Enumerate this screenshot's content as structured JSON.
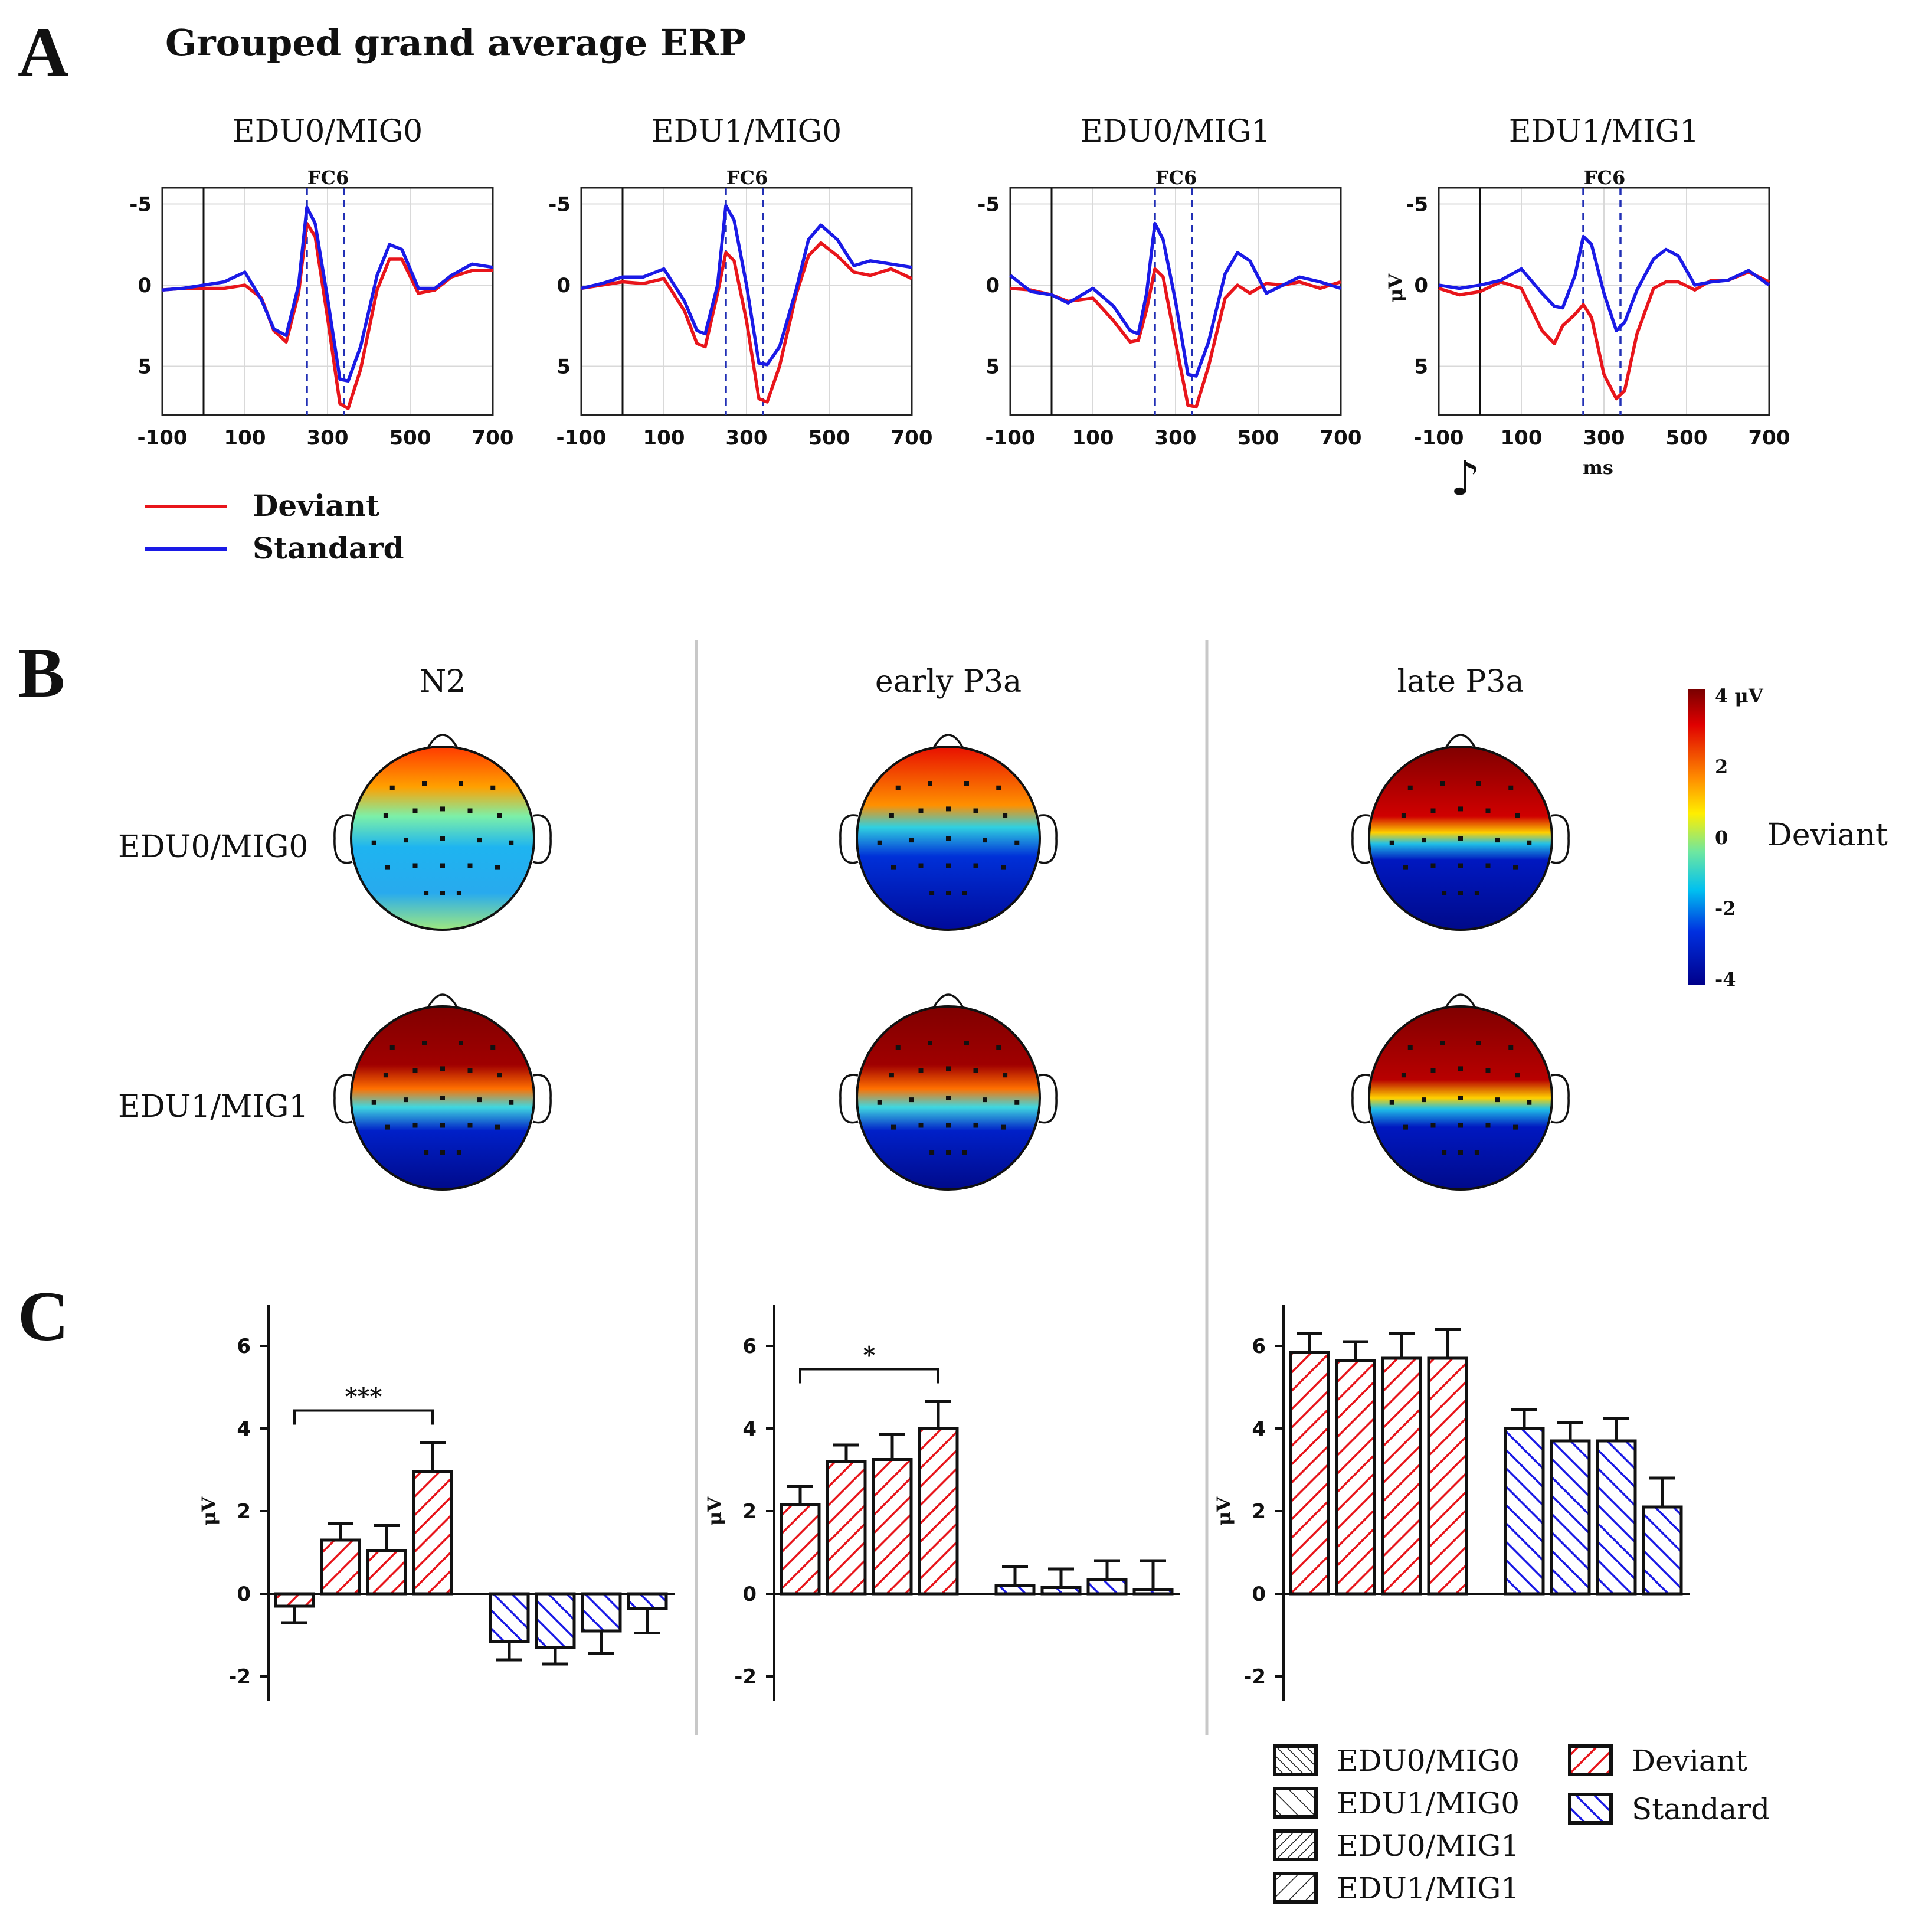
{
  "title": "Grouped grand average ERP",
  "panels": {
    "a": "A",
    "b": "B",
    "c": "C"
  },
  "erp": {
    "electrode": "FC6",
    "x_ticks": [
      "-100",
      "100",
      "300",
      "500",
      "700"
    ],
    "y_ticks": [
      "-5",
      "0",
      "5"
    ],
    "x_unit": "ms",
    "y_unit": "μV",
    "stimulus_glyph": "♪",
    "legend": {
      "deviant": "Deviant",
      "standard": "Standard"
    },
    "colors": {
      "deviant": "#e8151b",
      "standard": "#1a1ae6",
      "marker": "#2230b5"
    }
  },
  "topo": {
    "components": [
      "N2",
      "early P3a",
      "late P3a"
    ],
    "rows": [
      "EDU0/MIG0",
      "EDU1/MIG1"
    ],
    "colorbar_ticks": [
      "4 μV",
      "2",
      "0",
      "-2",
      "-4"
    ],
    "condition_label": "Deviant"
  },
  "bars": {
    "y_label": "μV",
    "y_ticks": [
      "6",
      "4",
      "2",
      "0",
      "-2"
    ],
    "legend_groups": [
      "EDU0/MIG0",
      "EDU1/MIG0",
      "EDU0/MIG1",
      "EDU1/MIG1"
    ],
    "legend_conditions": [
      "Deviant",
      "Standard"
    ]
  },
  "chart_data": [
    {
      "type": "line",
      "title": "EDU0/MIG0",
      "xlabel": "",
      "ylabel": "",
      "xlim": [
        -100,
        700
      ],
      "ylim": [
        8,
        -6
      ],
      "y_inverted": true,
      "markers_ms": [
        250,
        340
      ],
      "x": [
        -100,
        -50,
        0,
        50,
        100,
        140,
        170,
        200,
        230,
        250,
        270,
        300,
        330,
        350,
        380,
        420,
        450,
        480,
        520,
        560,
        600,
        650,
        700
      ],
      "series": [
        {
          "name": "Deviant",
          "values": [
            0.3,
            0.2,
            0.2,
            0.2,
            0.0,
            0.8,
            2.8,
            3.5,
            0.5,
            -3.8,
            -3.0,
            2.0,
            7.3,
            7.6,
            5.2,
            0.3,
            -1.6,
            -1.6,
            0.5,
            0.3,
            -0.5,
            -0.9,
            -0.9
          ]
        },
        {
          "name": "Standard",
          "values": [
            0.3,
            0.2,
            0.0,
            -0.2,
            -0.8,
            0.9,
            2.7,
            3.1,
            0.0,
            -4.8,
            -3.8,
            0.8,
            5.8,
            5.9,
            3.8,
            -0.6,
            -2.5,
            -2.2,
            0.2,
            0.2,
            -0.6,
            -1.3,
            -1.1
          ]
        }
      ]
    },
    {
      "type": "line",
      "title": "EDU1/MIG0",
      "xlabel": "",
      "ylabel": "",
      "xlim": [
        -100,
        700
      ],
      "ylim": [
        8,
        -6
      ],
      "y_inverted": true,
      "markers_ms": [
        250,
        340
      ],
      "x": [
        -100,
        -50,
        0,
        50,
        100,
        150,
        180,
        200,
        230,
        250,
        270,
        300,
        330,
        350,
        380,
        420,
        450,
        480,
        520,
        560,
        600,
        650,
        700
      ],
      "series": [
        {
          "name": "Deviant",
          "values": [
            0.2,
            0.0,
            -0.2,
            -0.1,
            -0.4,
            1.6,
            3.6,
            3.8,
            0.5,
            -2.0,
            -1.5,
            2.2,
            7.0,
            7.2,
            5.0,
            0.6,
            -1.8,
            -2.6,
            -1.8,
            -0.8,
            -0.6,
            -1.0,
            -0.4
          ]
        },
        {
          "name": "Standard",
          "values": [
            0.2,
            -0.1,
            -0.5,
            -0.5,
            -1.0,
            1.0,
            2.8,
            3.0,
            0.0,
            -4.9,
            -4.0,
            0.0,
            4.8,
            4.9,
            3.8,
            0.3,
            -2.8,
            -3.7,
            -2.8,
            -1.2,
            -1.5,
            -1.3,
            -1.1
          ]
        }
      ]
    },
    {
      "type": "line",
      "title": "EDU0/MIG1",
      "xlabel": "",
      "ylabel": "",
      "xlim": [
        -100,
        700
      ],
      "ylim": [
        8,
        -6
      ],
      "y_inverted": true,
      "markers_ms": [
        250,
        340
      ],
      "x": [
        -100,
        -50,
        0,
        40,
        100,
        150,
        190,
        210,
        230,
        250,
        270,
        300,
        330,
        350,
        380,
        420,
        450,
        480,
        520,
        560,
        600,
        650,
        700
      ],
      "series": [
        {
          "name": "Deviant",
          "values": [
            0.2,
            0.3,
            0.6,
            1.0,
            0.8,
            2.2,
            3.5,
            3.4,
            1.5,
            -1.0,
            -0.5,
            3.5,
            7.4,
            7.5,
            5.0,
            0.8,
            0.0,
            0.5,
            -0.1,
            0.0,
            -0.2,
            0.2,
            -0.2
          ]
        },
        {
          "name": "Standard",
          "values": [
            -0.6,
            0.4,
            0.6,
            1.1,
            0.2,
            1.3,
            2.8,
            3.0,
            0.5,
            -3.8,
            -2.8,
            1.0,
            5.5,
            5.6,
            3.5,
            -0.7,
            -2.0,
            -1.5,
            0.5,
            0.0,
            -0.5,
            -0.2,
            0.2
          ]
        }
      ]
    },
    {
      "type": "line",
      "title": "EDU1/MIG1",
      "xlabel": "ms",
      "ylabel": "μV",
      "xlim": [
        -100,
        700
      ],
      "ylim": [
        8,
        -6
      ],
      "y_inverted": true,
      "markers_ms": [
        250,
        340
      ],
      "x": [
        -100,
        -50,
        0,
        50,
        100,
        150,
        180,
        200,
        230,
        250,
        270,
        300,
        330,
        350,
        380,
        420,
        450,
        480,
        520,
        560,
        600,
        650,
        700
      ],
      "series": [
        {
          "name": "Deviant",
          "values": [
            0.2,
            0.6,
            0.4,
            -0.2,
            0.2,
            2.8,
            3.6,
            2.5,
            1.8,
            1.2,
            2.0,
            5.5,
            7.0,
            6.5,
            3.0,
            0.2,
            -0.2,
            -0.2,
            0.3,
            -0.3,
            -0.3,
            -0.8,
            -0.2
          ]
        },
        {
          "name": "Standard",
          "values": [
            0.0,
            0.2,
            0.0,
            -0.3,
            -1.0,
            0.5,
            1.3,
            1.4,
            -0.6,
            -3.0,
            -2.5,
            0.5,
            2.8,
            2.3,
            0.3,
            -1.6,
            -2.2,
            -1.8,
            0.0,
            -0.2,
            -0.3,
            -0.9,
            0.0
          ]
        }
      ]
    },
    {
      "type": "bar",
      "title": "N2",
      "ylabel": "μV",
      "ylim": [
        -2.6,
        7
      ],
      "categories": [
        "EDU0/MIG0",
        "EDU1/MIG0",
        "EDU0/MIG1",
        "EDU1/MIG1"
      ],
      "series": [
        {
          "name": "Deviant",
          "values": [
            -0.3,
            1.3,
            1.05,
            2.95
          ],
          "errors": [
            0.4,
            0.4,
            0.6,
            0.7
          ]
        },
        {
          "name": "Standard",
          "values": [
            -1.15,
            -1.3,
            -0.9,
            -0.35
          ],
          "errors": [
            0.45,
            0.4,
            0.55,
            0.6
          ]
        }
      ],
      "significance": {
        "label": "***",
        "from": 0,
        "to": 3
      }
    },
    {
      "type": "bar",
      "title": "early P3a",
      "ylabel": "μV",
      "ylim": [
        -2.6,
        7
      ],
      "categories": [
        "EDU0/MIG0",
        "EDU1/MIG0",
        "EDU0/MIG1",
        "EDU1/MIG1"
      ],
      "series": [
        {
          "name": "Deviant",
          "values": [
            2.15,
            3.2,
            3.25,
            4.0
          ],
          "errors": [
            0.45,
            0.4,
            0.6,
            0.65
          ]
        },
        {
          "name": "Standard",
          "values": [
            0.2,
            0.15,
            0.35,
            0.1
          ],
          "errors": [
            0.45,
            0.45,
            0.45,
            0.7
          ]
        }
      ],
      "significance": {
        "label": "*",
        "from": 0,
        "to": 3
      }
    },
    {
      "type": "bar",
      "title": "late P3a",
      "ylabel": "μV",
      "ylim": [
        -2.6,
        7
      ],
      "categories": [
        "EDU0/MIG0",
        "EDU1/MIG0",
        "EDU0/MIG1",
        "EDU1/MIG1"
      ],
      "series": [
        {
          "name": "Deviant",
          "values": [
            5.85,
            5.65,
            5.7,
            5.7
          ],
          "errors": [
            0.45,
            0.45,
            0.6,
            0.7
          ]
        },
        {
          "name": "Standard",
          "values": [
            4.0,
            3.7,
            3.7,
            2.1
          ],
          "errors": [
            0.45,
            0.45,
            0.55,
            0.7
          ]
        }
      ]
    }
  ]
}
